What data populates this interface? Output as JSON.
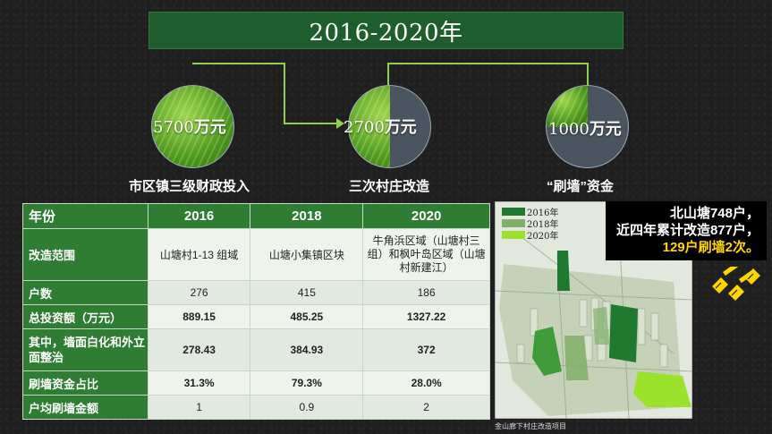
{
  "title": "2016-2020年",
  "circles": [
    {
      "amount": "5700",
      "unit": "万元",
      "caption": "市区镇三级财政投入"
    },
    {
      "amount": "2700",
      "unit": "万元",
      "caption": "三次村庄改造"
    },
    {
      "amount": "1000",
      "unit": "万元",
      "caption": "“刷墙”资金"
    }
  ],
  "table": {
    "headers": [
      "年份",
      "2016",
      "2018",
      "2020"
    ],
    "rows": [
      {
        "label": "改造范围",
        "values": [
          "山塘村1-13 组域",
          "山塘小集镇区块",
          "牛角浜区域（山塘村三组）和枫叶岛区域（山塘村新建江）"
        ]
      },
      {
        "label": "户数",
        "values": [
          "276",
          "415",
          "186"
        ]
      },
      {
        "label": "总投资额（万元）",
        "values": [
          "889.15",
          "485.25",
          "1327.22"
        ]
      },
      {
        "label": "其中，墙面白化和外立面整治",
        "values": [
          "278.43",
          "384.93",
          "372"
        ]
      },
      {
        "label": "刷墙资金占比",
        "values": [
          "31.3%",
          "79.3%",
          "28.0%"
        ]
      },
      {
        "label": "户均刷墙金额",
        "values": [
          "1",
          "0.9",
          "2"
        ]
      }
    ]
  },
  "map": {
    "legend": [
      {
        "label": "2016年",
        "color": "#1e7a2e"
      },
      {
        "label": "2018年",
        "color": "#7fb069"
      },
      {
        "label": "2020年",
        "color": "#9be22d"
      }
    ],
    "caption": "金山廊下村庄改造项目"
  },
  "info": {
    "line1": "北山塘748户，",
    "line2": "近四年累计改造877户，",
    "line3": "129户刷墙2次。"
  },
  "colors": {
    "accent": "#2e7d32",
    "highlight": "#ffd600",
    "connector": "#8fd14f"
  },
  "icons": [
    "paint-brush-icon"
  ]
}
